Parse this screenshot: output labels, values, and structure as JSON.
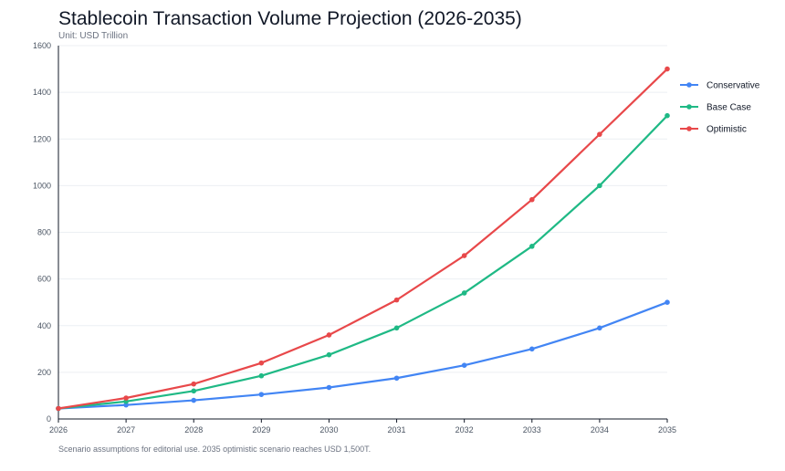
{
  "title": "Stablecoin Transaction Volume Projection (2026-2035)",
  "subtitle": "Unit: USD Trillion",
  "footnote": "Scenario assumptions for editorial use. 2035 optimistic scenario reaches USD 1,500T.",
  "chart_data": {
    "type": "line",
    "title": "Stablecoin Transaction Volume Projection (2026-2035)",
    "subtitle": "Unit: USD Trillion",
    "xlabel": "",
    "ylabel": "",
    "categories": [
      "2026",
      "2027",
      "2028",
      "2029",
      "2030",
      "2031",
      "2032",
      "2033",
      "2034",
      "2035"
    ],
    "yticks": [
      0,
      200,
      400,
      600,
      800,
      1000,
      1200,
      1400,
      1600
    ],
    "ylim": [
      0,
      1600
    ],
    "grid": true,
    "legend_position": "right",
    "series": [
      {
        "name": "Conservative",
        "color": "#4285f4",
        "values": [
          45,
          60,
          80,
          105,
          135,
          175,
          230,
          300,
          390,
          500
        ]
      },
      {
        "name": "Base Case",
        "color": "#1fb985",
        "values": [
          45,
          75,
          120,
          185,
          275,
          390,
          540,
          740,
          1000,
          1300
        ]
      },
      {
        "name": "Optimistic",
        "color": "#e8484a",
        "values": [
          45,
          90,
          150,
          240,
          360,
          510,
          700,
          940,
          1220,
          1500
        ]
      }
    ]
  }
}
